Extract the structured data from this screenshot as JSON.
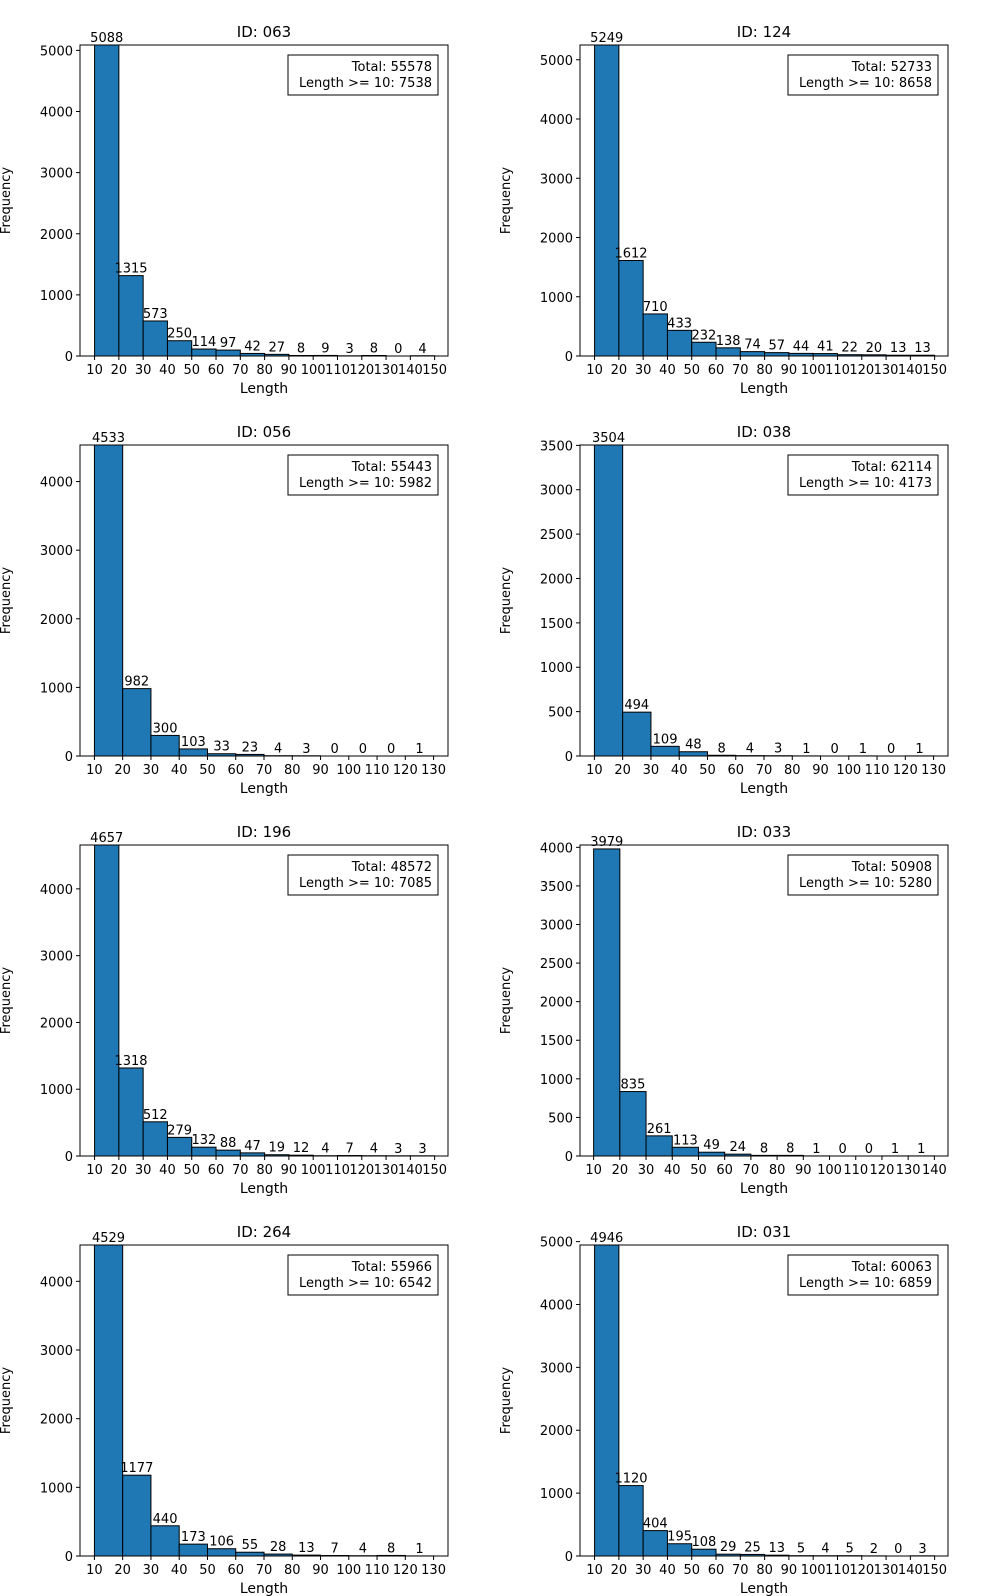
{
  "colors": {
    "bar": "#1f77b4",
    "edge": "#000000",
    "background": "#ffffff"
  },
  "chart_data": [
    {
      "type": "bar",
      "title": "ID: 063",
      "xlabel": "Length",
      "ylabel": "Frequency",
      "categories": [
        "10",
        "20",
        "30",
        "40",
        "50",
        "60",
        "70",
        "80",
        "90",
        "100",
        "110",
        "120",
        "130",
        "140"
      ],
      "values": [
        5088,
        1315,
        573,
        250,
        114,
        97,
        42,
        27,
        8,
        9,
        3,
        8,
        0,
        4
      ],
      "value_labels": [
        "5088",
        "1315",
        "573",
        "250",
        "114",
        "97",
        "42",
        "27",
        "8",
        "9",
        "3",
        "8",
        "0",
        "4"
      ],
      "xticks": [
        "10",
        "20",
        "30",
        "40",
        "50",
        "60",
        "70",
        "80",
        "90",
        "100",
        "110",
        "120",
        "130",
        "140",
        "150"
      ],
      "xticks_at": [
        10,
        20,
        30,
        40,
        50,
        60,
        70,
        80,
        90,
        100,
        110,
        120,
        130,
        140,
        150
      ],
      "bin_width": 10,
      "xlim": [
        4.0,
        155.5
      ],
      "ylim": [
        0,
        5088
      ],
      "yticks": [
        0,
        1000,
        2000,
        3000,
        4000,
        5000
      ],
      "ytick_labels": [
        "0",
        "1000",
        "2000",
        "3000",
        "4000",
        "5000"
      ],
      "legend": {
        "position": "top-right",
        "lines": [
          "Total: 55578",
          "Length >= 10: 7538"
        ]
      }
    },
    {
      "type": "bar",
      "title": "ID: 124",
      "xlabel": "Length",
      "ylabel": "Frequency",
      "categories": [
        "10",
        "20",
        "30",
        "40",
        "50",
        "60",
        "70",
        "80",
        "90",
        "100",
        "110",
        "120",
        "130",
        "140"
      ],
      "values": [
        5249,
        1612,
        710,
        433,
        232,
        138,
        74,
        57,
        44,
        41,
        22,
        20,
        13,
        13
      ],
      "value_labels": [
        "5249",
        "1612",
        "710",
        "433",
        "232",
        "138",
        "74",
        "57",
        "44",
        "41",
        "22",
        "20",
        "13",
        "13"
      ],
      "xticks": [
        "10",
        "20",
        "30",
        "40",
        "50",
        "60",
        "70",
        "80",
        "90",
        "100",
        "110",
        "120",
        "130",
        "140",
        "150"
      ],
      "xticks_at": [
        10,
        20,
        30,
        40,
        50,
        60,
        70,
        80,
        90,
        100,
        110,
        120,
        130,
        140,
        150
      ],
      "bin_width": 10,
      "xlim": [
        4.0,
        155.5
      ],
      "ylim": [
        0,
        5249
      ],
      "yticks": [
        0,
        1000,
        2000,
        3000,
        4000,
        5000
      ],
      "ytick_labels": [
        "0",
        "1000",
        "2000",
        "3000",
        "4000",
        "5000"
      ],
      "legend": {
        "position": "top-right",
        "lines": [
          "Total: 52733",
          "Length >= 10: 8658"
        ]
      }
    },
    {
      "type": "bar",
      "title": "ID: 056",
      "xlabel": "Length",
      "ylabel": "Frequency",
      "categories": [
        "10",
        "20",
        "30",
        "40",
        "50",
        "60",
        "70",
        "80",
        "90",
        "100",
        "110",
        "120"
      ],
      "values": [
        4533,
        982,
        300,
        103,
        33,
        23,
        4,
        3,
        0,
        0,
        0,
        1
      ],
      "value_labels": [
        "4533",
        "982",
        "300",
        "103",
        "33",
        "23",
        "4",
        "3",
        "0",
        "0",
        "0",
        "1"
      ],
      "xticks": [
        "10",
        "20",
        "30",
        "40",
        "50",
        "60",
        "70",
        "80",
        "90",
        "100",
        "110",
        "120",
        "130"
      ],
      "xticks_at": [
        10,
        20,
        30,
        40,
        50,
        60,
        70,
        80,
        90,
        100,
        110,
        120,
        130
      ],
      "bin_width": 10,
      "xlim": [
        4.9,
        135.1
      ],
      "ylim": [
        0,
        4533
      ],
      "yticks": [
        0,
        1000,
        2000,
        3000,
        4000
      ],
      "ytick_labels": [
        "0",
        "1000",
        "2000",
        "3000",
        "4000"
      ],
      "legend": {
        "position": "top-right",
        "lines": [
          "Total: 55443",
          "Length >= 10: 5982"
        ]
      }
    },
    {
      "type": "bar",
      "title": "ID: 038",
      "xlabel": "Length",
      "ylabel": "Frequency",
      "categories": [
        "10",
        "20",
        "30",
        "40",
        "50",
        "60",
        "70",
        "80",
        "90",
        "100",
        "110",
        "120"
      ],
      "values": [
        3504,
        494,
        109,
        48,
        8,
        4,
        3,
        1,
        0,
        1,
        0,
        1
      ],
      "value_labels": [
        "3504",
        "494",
        "109",
        "48",
        "8",
        "4",
        "3",
        "1",
        "0",
        "1",
        "0",
        "1"
      ],
      "xticks": [
        "10",
        "20",
        "30",
        "40",
        "50",
        "60",
        "70",
        "80",
        "90",
        "100",
        "110",
        "120",
        "130"
      ],
      "xticks_at": [
        10,
        20,
        30,
        40,
        50,
        60,
        70,
        80,
        90,
        100,
        110,
        120,
        130
      ],
      "bin_width": 10,
      "xlim": [
        4.9,
        135.1
      ],
      "ylim": [
        0,
        3504
      ],
      "yticks": [
        0,
        500,
        1000,
        1500,
        2000,
        2500,
        3000,
        3500
      ],
      "ytick_labels": [
        "0",
        "500",
        "1000",
        "1500",
        "2000",
        "2500",
        "3000",
        "3500"
      ],
      "legend": {
        "position": "top-right",
        "lines": [
          "Total: 62114",
          "Length >= 10: 4173"
        ]
      }
    },
    {
      "type": "bar",
      "title": "ID: 196",
      "xlabel": "Length",
      "ylabel": "Frequency",
      "categories": [
        "10",
        "20",
        "30",
        "40",
        "50",
        "60",
        "70",
        "80",
        "90",
        "100",
        "110",
        "120",
        "130",
        "140"
      ],
      "values": [
        4657,
        1318,
        512,
        279,
        132,
        88,
        47,
        19,
        12,
        4,
        7,
        4,
        3,
        3
      ],
      "value_labels": [
        "4657",
        "1318",
        "512",
        "279",
        "132",
        "88",
        "47",
        "19",
        "12",
        "4",
        "7",
        "4",
        "3",
        "3"
      ],
      "xticks": [
        "10",
        "20",
        "30",
        "40",
        "50",
        "60",
        "70",
        "80",
        "90",
        "100",
        "110",
        "120",
        "130",
        "140",
        "150"
      ],
      "xticks_at": [
        10,
        20,
        30,
        40,
        50,
        60,
        70,
        80,
        90,
        100,
        110,
        120,
        130,
        140,
        150
      ],
      "bin_width": 10,
      "xlim": [
        4.0,
        155.5
      ],
      "ylim": [
        0,
        4657
      ],
      "yticks": [
        0,
        1000,
        2000,
        3000,
        4000
      ],
      "ytick_labels": [
        "0",
        "1000",
        "2000",
        "3000",
        "4000"
      ],
      "legend": {
        "position": "top-right",
        "lines": [
          "Total: 48572",
          "Length >= 10: 7085"
        ]
      }
    },
    {
      "type": "bar",
      "title": "ID: 033",
      "xlabel": "Length",
      "ylabel": "Frequency",
      "categories": [
        "10",
        "20",
        "30",
        "40",
        "50",
        "60",
        "70",
        "80",
        "90",
        "100",
        "110",
        "120",
        "130"
      ],
      "values": [
        3979,
        835,
        261,
        113,
        49,
        24,
        8,
        8,
        1,
        0,
        0,
        1,
        1
      ],
      "value_labels": [
        "3979",
        "835",
        "261",
        "113",
        "49",
        "24",
        "8",
        "8",
        "1",
        "0",
        "0",
        "1",
        "1"
      ],
      "xticks": [
        "10",
        "20",
        "30",
        "40",
        "50",
        "60",
        "70",
        "80",
        "90",
        "100",
        "110",
        "120",
        "130",
        "140"
      ],
      "xticks_at": [
        10,
        20,
        30,
        40,
        50,
        60,
        70,
        80,
        90,
        100,
        110,
        120,
        130,
        140
      ],
      "bin_width": 10,
      "xlim": [
        4.8,
        145.2
      ],
      "ylim": [
        0,
        4030
      ],
      "yticks": [
        0,
        500,
        1000,
        1500,
        2000,
        2500,
        3000,
        3500,
        4000
      ],
      "ytick_labels": [
        "0",
        "500",
        "1000",
        "1500",
        "2000",
        "2500",
        "3000",
        "3500",
        "4000"
      ],
      "legend": {
        "position": "top-right",
        "lines": [
          "Total: 50908",
          "Length >= 10: 5280"
        ]
      }
    },
    {
      "type": "bar",
      "title": "ID: 264",
      "xlabel": "Length",
      "ylabel": "Frequency",
      "categories": [
        "10",
        "20",
        "30",
        "40",
        "50",
        "60",
        "70",
        "80",
        "90",
        "100",
        "110",
        "120"
      ],
      "values": [
        4529,
        1177,
        440,
        173,
        106,
        55,
        28,
        13,
        7,
        4,
        8,
        1
      ],
      "value_labels": [
        "4529",
        "1177",
        "440",
        "173",
        "106",
        "55",
        "28",
        "13",
        "7",
        "4",
        "8",
        "1"
      ],
      "xticks": [
        "10",
        "20",
        "30",
        "40",
        "50",
        "60",
        "70",
        "80",
        "90",
        "100",
        "110",
        "120",
        "130"
      ],
      "xticks_at": [
        10,
        20,
        30,
        40,
        50,
        60,
        70,
        80,
        90,
        100,
        110,
        120,
        130
      ],
      "bin_width": 10,
      "xlim": [
        4.9,
        135.1
      ],
      "ylim": [
        0,
        4529
      ],
      "yticks": [
        0,
        1000,
        2000,
        3000,
        4000
      ],
      "ytick_labels": [
        "0",
        "1000",
        "2000",
        "3000",
        "4000"
      ],
      "legend": {
        "position": "top-right",
        "lines": [
          "Total: 55966",
          "Length >= 10: 6542"
        ]
      }
    },
    {
      "type": "bar",
      "title": "ID: 031",
      "xlabel": "Length",
      "ylabel": "Frequency",
      "categories": [
        "10",
        "20",
        "30",
        "40",
        "50",
        "60",
        "70",
        "80",
        "90",
        "100",
        "110",
        "120",
        "130",
        "140"
      ],
      "values": [
        4946,
        1120,
        404,
        195,
        108,
        29,
        25,
        13,
        5,
        4,
        5,
        2,
        0,
        3
      ],
      "value_labels": [
        "4946",
        "1120",
        "404",
        "195",
        "108",
        "29",
        "25",
        "13",
        "5",
        "4",
        "5",
        "2",
        "0",
        "3"
      ],
      "xticks": [
        "10",
        "20",
        "30",
        "40",
        "50",
        "60",
        "70",
        "80",
        "90",
        "100",
        "110",
        "120",
        "130",
        "140",
        "150"
      ],
      "xticks_at": [
        10,
        20,
        30,
        40,
        50,
        60,
        70,
        80,
        90,
        100,
        110,
        120,
        130,
        140,
        150
      ],
      "bin_width": 10,
      "xlim": [
        4.0,
        155.5
      ],
      "ylim": [
        0,
        4946
      ],
      "yticks": [
        0,
        1000,
        2000,
        3000,
        4000,
        5000
      ],
      "ytick_labels": [
        "0",
        "1000",
        "2000",
        "3000",
        "4000",
        "5000"
      ],
      "legend": {
        "position": "top-right",
        "lines": [
          "Total: 60063",
          "Length >= 10: 6859"
        ]
      }
    }
  ]
}
